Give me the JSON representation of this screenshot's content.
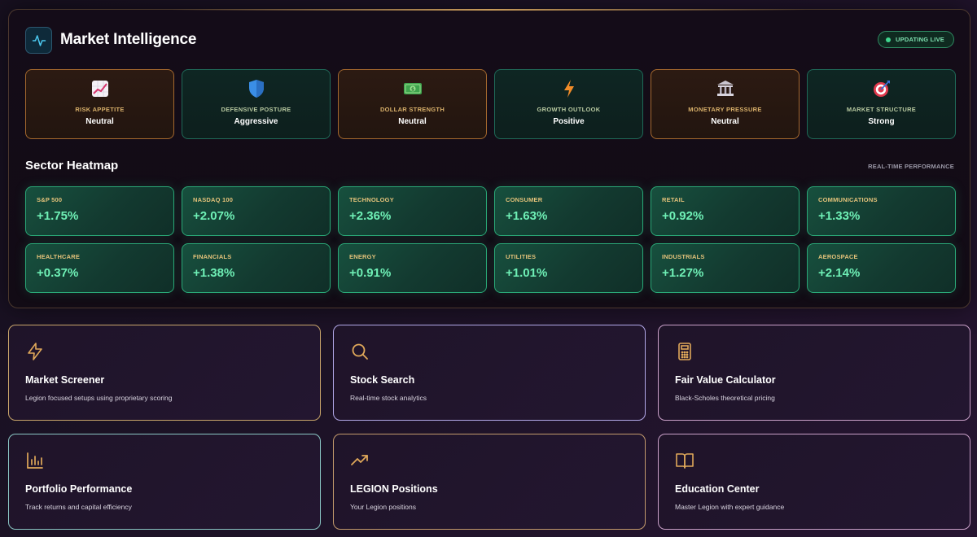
{
  "header": {
    "title": "Market Intelligence",
    "live_badge": "UPDATING LIVE"
  },
  "indicators": [
    {
      "label": "RISK APPETITE",
      "value": "Neutral",
      "icon": "chart-increasing-icon",
      "tone": "warm"
    },
    {
      "label": "DEFENSIVE POSTURE",
      "value": "Aggressive",
      "icon": "shield-icon",
      "tone": "cool"
    },
    {
      "label": "DOLLAR STRENGTH",
      "value": "Neutral",
      "icon": "dollar-bill-icon",
      "tone": "warm"
    },
    {
      "label": "GROWTH OUTLOOK",
      "value": "Positive",
      "icon": "lightning-icon",
      "tone": "cool"
    },
    {
      "label": "MONETARY PRESSURE",
      "value": "Neutral",
      "icon": "bank-icon",
      "tone": "warm"
    },
    {
      "label": "MARKET STRUCTURE",
      "value": "Strong",
      "icon": "target-icon",
      "tone": "cool"
    }
  ],
  "heatmap": {
    "title": "Sector Heatmap",
    "subtitle": "REAL-TIME PERFORMANCE",
    "sectors": [
      {
        "name": "S&P 500",
        "change": "+1.75%"
      },
      {
        "name": "NASDAQ 100",
        "change": "+2.07%"
      },
      {
        "name": "TECHNOLOGY",
        "change": "+2.36%"
      },
      {
        "name": "CONSUMER",
        "change": "+1.63%"
      },
      {
        "name": "RETAIL",
        "change": "+0.92%"
      },
      {
        "name": "COMMUNICATIONS",
        "change": "+1.33%"
      },
      {
        "name": "HEALTHCARE",
        "change": "+0.37%"
      },
      {
        "name": "FINANCIALS",
        "change": "+1.38%"
      },
      {
        "name": "ENERGY",
        "change": "+0.91%"
      },
      {
        "name": "UTILITIES",
        "change": "+1.01%"
      },
      {
        "name": "INDUSTRIALS",
        "change": "+1.27%"
      },
      {
        "name": "AEROSPACE",
        "change": "+2.14%"
      }
    ]
  },
  "cards": [
    {
      "title": "Market Screener",
      "description": "Legion focused setups using proprietary scoring",
      "icon": "lightning-bolt-icon"
    },
    {
      "title": "Stock Search",
      "description": "Real-time stock analytics",
      "icon": "search-icon"
    },
    {
      "title": "Fair Value Calculator",
      "description": "Black-Scholes theoretical pricing",
      "icon": "calculator-icon"
    },
    {
      "title": "Portfolio Performance",
      "description": "Track returns and capital efficiency",
      "icon": "bar-chart-icon"
    },
    {
      "title": "LEGION Positions",
      "description": "Your Legion positions",
      "icon": "trending-up-icon"
    },
    {
      "title": "Education Center",
      "description": "Master Legion with expert guidance",
      "icon": "open-book-icon"
    }
  ],
  "colors": {
    "accent_green": "#6ff0b6",
    "accent_gold": "#d8b06a",
    "icon_gold": "#e0a85a"
  }
}
